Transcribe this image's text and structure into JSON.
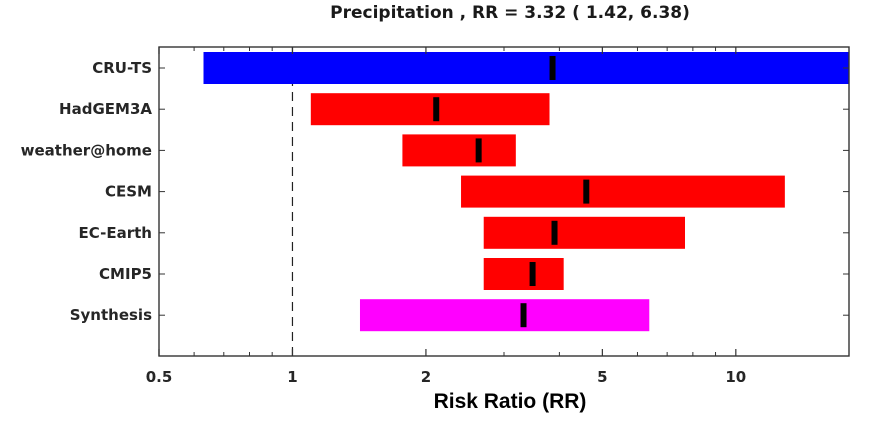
{
  "chart_data": {
    "type": "bar",
    "subtype": "horizontal-range",
    "title": "Precipitation , RR = 3.32 ( 1.42, 6.38)",
    "xlabel": "Risk Ratio (RR)",
    "ylabel": "",
    "xscale": "log",
    "xlim": [
      0.5,
      18
    ],
    "xticks": [
      0.5,
      1,
      2,
      5,
      10
    ],
    "xtick_labels": [
      "0.5",
      "1",
      "2",
      "5",
      "10"
    ],
    "x_minor_ticks": [
      0.6,
      0.7,
      0.8,
      0.9,
      3,
      4,
      6,
      7,
      8,
      9
    ],
    "reference_line": {
      "x": 1,
      "style": "dashed"
    },
    "grid": false,
    "categories": [
      "CRU-TS",
      "HadGEM3A",
      "weather@home",
      "CESM",
      "EC-Earth",
      "CMIP5",
      "Synthesis"
    ],
    "series": [
      {
        "name": "CRU-TS",
        "type": "observation",
        "color": "#0000ff",
        "low": 0.63,
        "best": 3.86,
        "high": 18,
        "high_clipped": true
      },
      {
        "name": "HadGEM3A",
        "type": "model",
        "color": "#ff0000",
        "low": 1.1,
        "best": 2.11,
        "high": 3.8
      },
      {
        "name": "weather@home",
        "type": "model",
        "color": "#ff0000",
        "low": 1.77,
        "best": 2.63,
        "high": 3.19
      },
      {
        "name": "CESM",
        "type": "model",
        "color": "#ff0000",
        "low": 2.4,
        "best": 4.6,
        "high": 12.9
      },
      {
        "name": "EC-Earth",
        "type": "model",
        "color": "#ff0000",
        "low": 2.7,
        "best": 3.9,
        "high": 7.68
      },
      {
        "name": "CMIP5",
        "type": "model",
        "color": "#ff0000",
        "low": 2.7,
        "best": 3.48,
        "high": 4.09
      },
      {
        "name": "Synthesis",
        "type": "synthesis",
        "color": "#ff00ff",
        "low": 1.42,
        "best": 3.32,
        "high": 6.38
      }
    ],
    "median_marker_color": "#000000"
  }
}
